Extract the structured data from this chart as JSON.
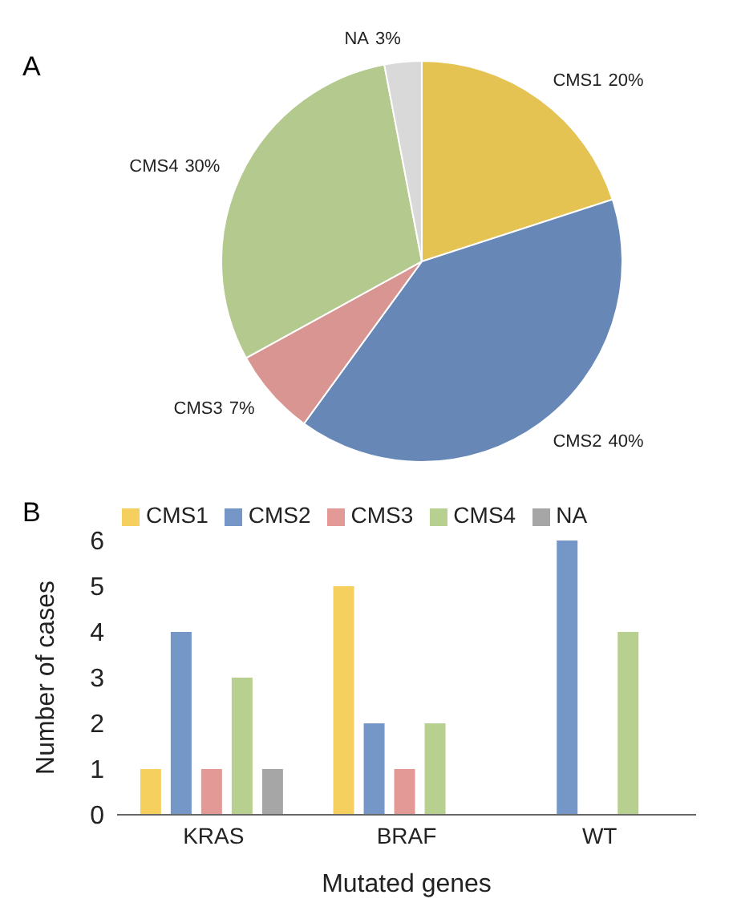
{
  "chart_data": [
    {
      "type": "pie",
      "annotations": [
        "A"
      ],
      "categories": [
        "CMS1",
        "CMS2",
        "CMS3",
        "CMS4",
        "NA"
      ],
      "values": [
        20,
        40,
        7,
        30,
        3
      ],
      "colors": [
        "#e5c353",
        "#6787b7",
        "#d99591",
        "#b3c98e",
        "#d9d9d9"
      ],
      "value_labels": [
        "20%",
        "40%",
        "7%",
        "30%",
        "3%"
      ]
    },
    {
      "type": "bar",
      "annotations": [
        "B"
      ],
      "xlabel": "Mutated genes",
      "ylabel": "Number of cases",
      "categories": [
        "KRAS",
        "BRAF",
        "WT"
      ],
      "ylim": [
        0,
        6
      ],
      "yticks": [
        0,
        1,
        2,
        3,
        4,
        5,
        6
      ],
      "legend": "top",
      "series": [
        {
          "name": "CMS1",
          "color": "#f5d05f",
          "values": [
            1,
            5,
            null
          ]
        },
        {
          "name": "CMS2",
          "color": "#7597c8",
          "values": [
            4,
            2,
            6
          ]
        },
        {
          "name": "CMS3",
          "color": "#e39a97",
          "values": [
            1,
            1,
            null
          ]
        },
        {
          "name": "CMS4",
          "color": "#b8d08f",
          "values": [
            3,
            2,
            4
          ]
        },
        {
          "name": "NA",
          "color": "#a6a6a6",
          "values": [
            1,
            null,
            null
          ]
        }
      ]
    }
  ]
}
